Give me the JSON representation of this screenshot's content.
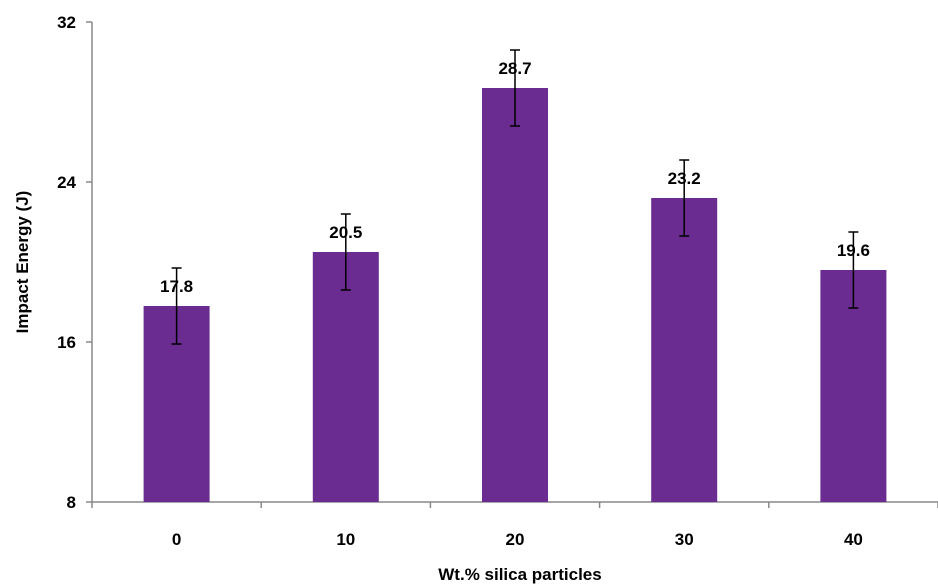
{
  "chart_data": {
    "type": "bar",
    "title": "",
    "xlabel": "Wt.% silica particles",
    "ylabel": "Impact Energy (J)",
    "categories": [
      "0",
      "10",
      "20",
      "30",
      "40"
    ],
    "values": [
      17.8,
      20.5,
      28.7,
      23.2,
      19.6
    ],
    "data_labels": [
      "17.8",
      "20.5",
      "28.7",
      "23.2",
      "19.6"
    ],
    "error_bars": [
      1.9,
      1.9,
      1.9,
      1.9,
      1.9
    ],
    "ylim": [
      8,
      32
    ],
    "yticks": [
      8,
      16,
      24,
      32
    ],
    "ytick_labels": [
      "8",
      "16",
      "24",
      "32"
    ],
    "grid": false,
    "legend": "none",
    "bar_color": "#6a2c91"
  }
}
